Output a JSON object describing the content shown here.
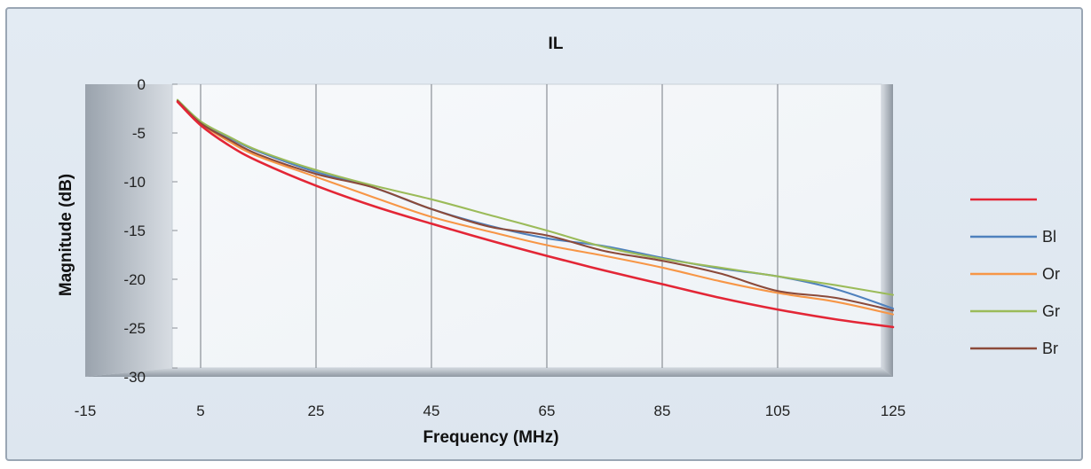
{
  "chart_data": {
    "type": "line",
    "title": "IL",
    "xlabel": "Frequency (MHz)",
    "ylabel": "Magnitude (dB)",
    "xlim": [
      -15,
      125
    ],
    "ylim": [
      -30,
      0
    ],
    "x_ticks": [
      "-15",
      "5",
      "25",
      "45",
      "65",
      "85",
      "105",
      "125"
    ],
    "y_ticks": [
      "0",
      "-5",
      "-10",
      "-15",
      "-20",
      "-25",
      "-30"
    ],
    "grid": "vertical",
    "legend_position": "right",
    "series": [
      {
        "name": "",
        "color": "#e32636",
        "x": [
          1,
          5,
          10,
          15,
          25,
          35,
          45,
          55,
          65,
          75,
          85,
          95,
          105,
          115,
          125
        ],
        "y": [
          -1.8,
          -4.2,
          -6.3,
          -7.9,
          -10.4,
          -12.5,
          -14.3,
          -16.0,
          -17.6,
          -19.1,
          -20.5,
          -21.9,
          -23.1,
          -24.1,
          -24.9
        ]
      },
      {
        "name": "Bl",
        "color": "#4f81bd",
        "x": [
          1,
          5,
          10,
          15,
          25,
          35,
          45,
          55,
          65,
          75,
          85,
          95,
          105,
          115,
          125
        ],
        "y": [
          -1.7,
          -3.9,
          -5.5,
          -6.9,
          -9.0,
          -10.6,
          -12.8,
          -14.5,
          -15.8,
          -16.6,
          -17.8,
          -18.9,
          -19.7,
          -21.0,
          -23.0
        ]
      },
      {
        "name": "Or",
        "color": "#f79646",
        "x": [
          1,
          5,
          10,
          15,
          25,
          35,
          45,
          55,
          65,
          75,
          85,
          95,
          105,
          115,
          125
        ],
        "y": [
          -1.7,
          -4.0,
          -5.9,
          -7.4,
          -9.5,
          -11.6,
          -13.6,
          -15.1,
          -16.5,
          -17.6,
          -18.8,
          -20.2,
          -21.4,
          -22.3,
          -23.6
        ]
      },
      {
        "name": "Gr",
        "color": "#9bbb59",
        "x": [
          1,
          5,
          10,
          15,
          25,
          35,
          45,
          55,
          65,
          75,
          85,
          95,
          105,
          115,
          125
        ],
        "y": [
          -1.6,
          -3.8,
          -5.4,
          -6.8,
          -8.8,
          -10.4,
          -11.8,
          -13.4,
          -15.0,
          -16.7,
          -17.9,
          -18.8,
          -19.7,
          -20.6,
          -21.6
        ]
      },
      {
        "name": "Br",
        "color": "#8b4a3a",
        "x": [
          1,
          5,
          10,
          15,
          25,
          35,
          45,
          55,
          65,
          75,
          85,
          95,
          105,
          115,
          125
        ],
        "y": [
          -1.7,
          -4.0,
          -5.7,
          -7.2,
          -9.2,
          -10.6,
          -12.8,
          -14.6,
          -15.5,
          -17.1,
          -18.1,
          -19.4,
          -21.2,
          -21.9,
          -23.2
        ]
      }
    ]
  }
}
